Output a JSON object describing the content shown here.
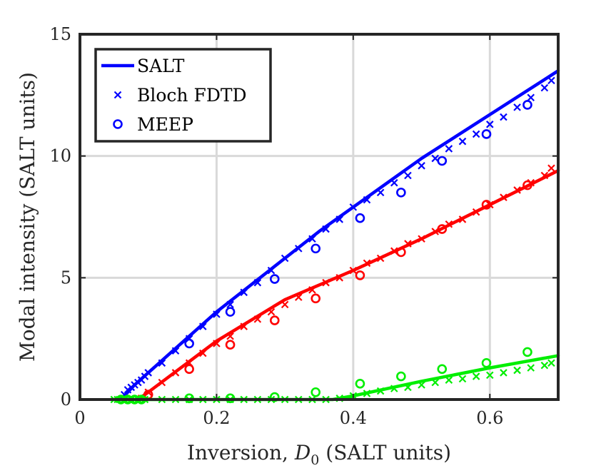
{
  "chart_data": {
    "type": "scatter",
    "xlabel": "Inversion, D0 (SALT units)",
    "xlabel_parts": {
      "pre": "Inversion, ",
      "var": "D",
      "sub": "0",
      "post": " (SALT units)"
    },
    "ylabel": "Modal intensity (SALT units)",
    "xlim": [
      0,
      0.7
    ],
    "ylim": [
      0,
      15
    ],
    "xticks": [
      0,
      0.2,
      0.4,
      0.6
    ],
    "yticks": [
      0,
      5,
      10,
      15
    ],
    "xtick_labels": [
      "0",
      "0.2",
      "0.4",
      "0.6"
    ],
    "ytick_labels": [
      "0",
      "5",
      "10",
      "15"
    ],
    "grid": true,
    "legend_position": "top-left",
    "legend": [
      {
        "label": "SALT",
        "marker": "line",
        "color": "#0000ff"
      },
      {
        "label": "Bloch FDTD",
        "marker": "x",
        "color": "#0000ff"
      },
      {
        "label": "MEEP",
        "marker": "circle",
        "color": "#0000ff"
      }
    ],
    "series": [
      {
        "color": "#0000ff",
        "salt_line": {
          "x": [
            0.06,
            0.08,
            0.1,
            0.2,
            0.3,
            0.35,
            0.4,
            0.5,
            0.6,
            0.7
          ],
          "y": [
            0,
            0.6,
            1.1,
            3.6,
            5.8,
            6.9,
            7.9,
            9.9,
            11.7,
            13.5
          ]
        },
        "bloch_fdtd": {
          "x": [
            0.065,
            0.07,
            0.075,
            0.08,
            0.085,
            0.09,
            0.095,
            0.1,
            0.12,
            0.14,
            0.16,
            0.18,
            0.2,
            0.22,
            0.24,
            0.26,
            0.28,
            0.3,
            0.32,
            0.34,
            0.36,
            0.38,
            0.4,
            0.42,
            0.44,
            0.46,
            0.48,
            0.5,
            0.52,
            0.54,
            0.56,
            0.58,
            0.6,
            0.62,
            0.64,
            0.66,
            0.68,
            0.69
          ],
          "y": [
            0.2,
            0.4,
            0.5,
            0.6,
            0.7,
            0.8,
            0.95,
            1.1,
            1.5,
            2.0,
            2.5,
            3.0,
            3.5,
            3.9,
            4.4,
            4.8,
            5.3,
            5.8,
            6.2,
            6.6,
            7.0,
            7.4,
            7.9,
            8.2,
            8.5,
            8.9,
            9.2,
            9.6,
            9.9,
            10.3,
            10.6,
            10.9,
            11.3,
            11.6,
            12.0,
            12.4,
            12.8,
            13.1
          ]
        },
        "meep": {
          "x": [
            0.16,
            0.22,
            0.285,
            0.345,
            0.41,
            0.47,
            0.53,
            0.595,
            0.655
          ],
          "y": [
            2.3,
            3.6,
            4.95,
            6.2,
            7.45,
            8.5,
            9.8,
            10.9,
            12.1
          ]
        }
      },
      {
        "color": "#ff0000",
        "salt_line": {
          "x": [
            0.085,
            0.1,
            0.2,
            0.3,
            0.4,
            0.5,
            0.6,
            0.7
          ],
          "y": [
            0,
            0.3,
            2.4,
            4.1,
            5.3,
            6.6,
            8.0,
            9.4
          ]
        },
        "bloch_fdtd": {
          "x": [
            0.09,
            0.1,
            0.12,
            0.14,
            0.16,
            0.18,
            0.2,
            0.22,
            0.24,
            0.26,
            0.28,
            0.3,
            0.32,
            0.34,
            0.36,
            0.38,
            0.4,
            0.42,
            0.44,
            0.46,
            0.48,
            0.5,
            0.52,
            0.54,
            0.56,
            0.58,
            0.6,
            0.62,
            0.64,
            0.66,
            0.68,
            0.69
          ],
          "y": [
            0.05,
            0.3,
            0.7,
            1.1,
            1.5,
            1.9,
            2.3,
            2.6,
            3.0,
            3.3,
            3.6,
            3.9,
            4.2,
            4.5,
            4.8,
            5.0,
            5.3,
            5.6,
            5.8,
            6.1,
            6.4,
            6.6,
            6.9,
            7.2,
            7.4,
            7.7,
            8.0,
            8.3,
            8.6,
            8.9,
            9.2,
            9.5
          ]
        },
        "meep": {
          "x": [
            0.1,
            0.16,
            0.22,
            0.285,
            0.345,
            0.41,
            0.47,
            0.53,
            0.595,
            0.655
          ],
          "y": [
            0.2,
            1.25,
            2.25,
            3.25,
            4.15,
            5.1,
            6.05,
            7.0,
            8.0,
            8.8
          ]
        }
      },
      {
        "color": "#00ee00",
        "salt_line": {
          "x": [
            0.05,
            0.1,
            0.2,
            0.3,
            0.37,
            0.4,
            0.5,
            0.6,
            0.7
          ],
          "y": [
            0,
            0,
            0,
            0,
            0,
            0.15,
            0.75,
            1.3,
            1.8
          ]
        },
        "bloch_fdtd": {
          "x": [
            0.05,
            0.055,
            0.06,
            0.065,
            0.07,
            0.075,
            0.08,
            0.085,
            0.09,
            0.095,
            0.12,
            0.14,
            0.16,
            0.18,
            0.2,
            0.22,
            0.24,
            0.26,
            0.28,
            0.3,
            0.32,
            0.34,
            0.36,
            0.38,
            0.4,
            0.42,
            0.44,
            0.46,
            0.48,
            0.5,
            0.52,
            0.54,
            0.56,
            0.58,
            0.6,
            0.62,
            0.64,
            0.66,
            0.68,
            0.69
          ],
          "y": [
            0,
            0,
            0,
            0,
            0,
            0,
            0,
            0,
            0,
            0,
            0,
            0,
            0,
            0,
            0,
            0,
            0,
            0,
            0,
            0,
            0,
            0,
            0,
            0.05,
            0.15,
            0.25,
            0.35,
            0.45,
            0.5,
            0.6,
            0.7,
            0.8,
            0.85,
            0.95,
            1.0,
            1.1,
            1.2,
            1.3,
            1.4,
            1.5
          ]
        },
        "meep": {
          "x": [
            0.06,
            0.07,
            0.08,
            0.09,
            0.16,
            0.22,
            0.285,
            0.345,
            0.41,
            0.47,
            0.53,
            0.595,
            0.655
          ],
          "y": [
            0,
            0,
            0,
            0,
            0.05,
            0.05,
            0.1,
            0.3,
            0.65,
            0.95,
            1.25,
            1.5,
            1.95
          ]
        }
      }
    ]
  }
}
